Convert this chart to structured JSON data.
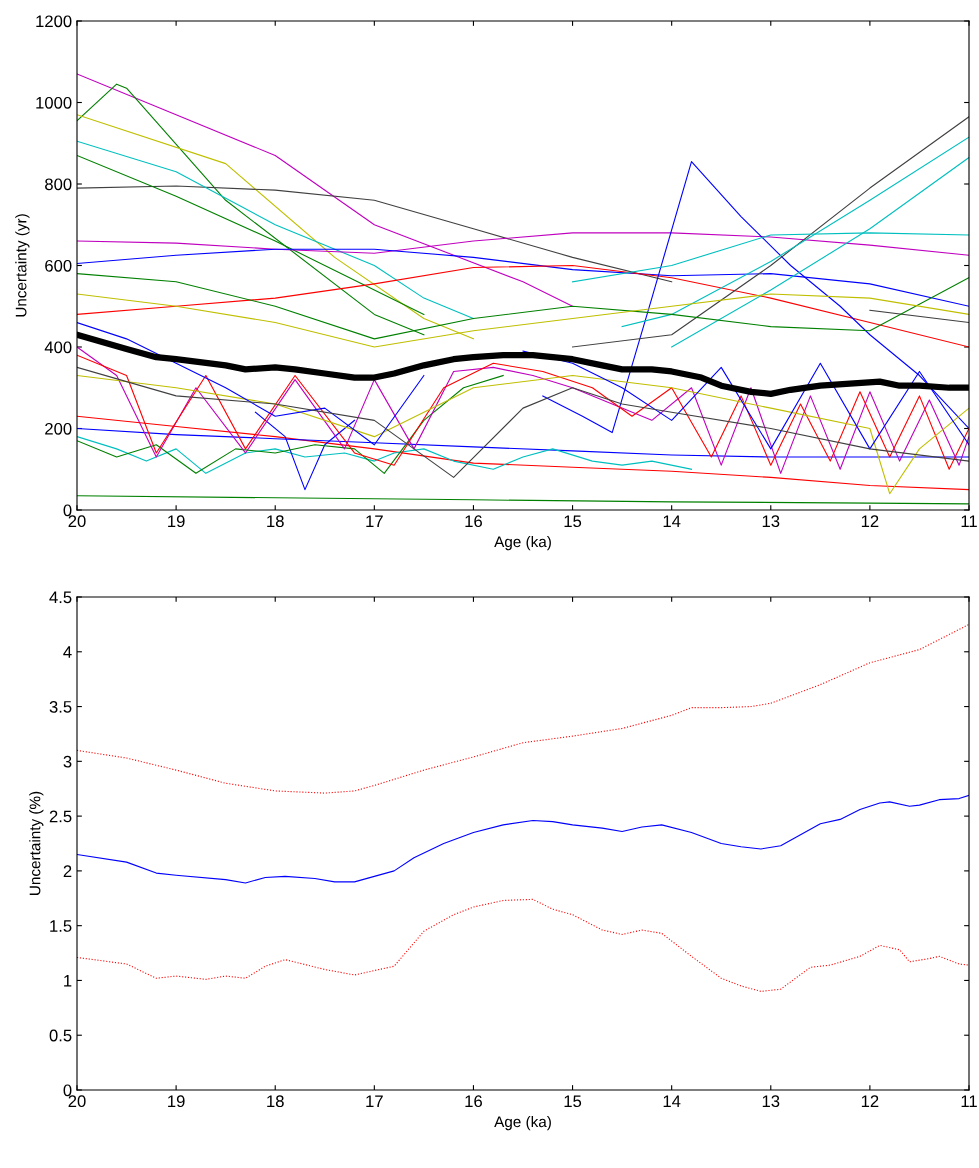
{
  "chart_data": [
    {
      "type": "line",
      "xlabel": "Age (ka)",
      "ylabel": "Uncertainty (yr)",
      "xlim": [
        20,
        11
      ],
      "ylim": [
        0,
        1200
      ],
      "xticks": [
        20,
        19,
        18,
        17,
        16,
        15,
        14,
        13,
        12,
        11
      ],
      "yticks": [
        0,
        200,
        400,
        600,
        800,
        1000,
        1200
      ],
      "grid": false,
      "legend": false,
      "line_style": "solid",
      "series": [
        {
          "color": "#bf00bf",
          "x": [
            20,
            18,
            17,
            15.5,
            15
          ],
          "values": [
            1070,
            870,
            700,
            560,
            500
          ]
        },
        {
          "color": "#008000",
          "x": [
            20,
            19.6,
            19.5,
            18.5,
            17,
            16.5
          ],
          "values": [
            955,
            1045,
            1035,
            760,
            480,
            430
          ]
        },
        {
          "color": "#bfbf00",
          "x": [
            20,
            18.5,
            17.4,
            16.5,
            16
          ],
          "values": [
            970,
            850,
            620,
            470,
            420
          ]
        },
        {
          "color": "#404040",
          "x": [
            20,
            19,
            18,
            17,
            16,
            15,
            14,
            13,
            12,
            11
          ],
          "values": [
            790,
            795,
            785,
            760,
            690,
            620,
            560,
            null,
            490,
            460
          ]
        },
        {
          "color": "#00bfbf",
          "x": [
            20,
            19,
            18,
            17,
            16.5,
            16
          ],
          "values": [
            905,
            830,
            700,
            600,
            520,
            470
          ]
        },
        {
          "color": "#008000",
          "x": [
            20,
            19,
            18,
            17,
            16.5
          ],
          "values": [
            870,
            770,
            660,
            540,
            480
          ]
        },
        {
          "color": "#bf00bf",
          "x": [
            20,
            19,
            18,
            17,
            16,
            15,
            14,
            13,
            12,
            11
          ],
          "values": [
            660,
            655,
            640,
            630,
            660,
            680,
            680,
            670,
            650,
            625
          ]
        },
        {
          "color": "#0000ff",
          "x": [
            20,
            19,
            18,
            17,
            16,
            15,
            14,
            13,
            12,
            11
          ],
          "values": [
            605,
            625,
            640,
            640,
            620,
            590,
            575,
            580,
            555,
            500
          ]
        },
        {
          "color": "#ff0000",
          "x": [
            20,
            19,
            18,
            17,
            16,
            15,
            14,
            13,
            12,
            11
          ],
          "values": [
            480,
            500,
            520,
            555,
            595,
            600,
            570,
            520,
            460,
            400
          ]
        },
        {
          "color": "#0000ff",
          "x": [
            15.3,
            14.9,
            14.6,
            14.2,
            13.8,
            13.3,
            12.8,
            12.3,
            12,
            11.5,
            11
          ],
          "values": [
            280,
            230,
            190,
            520,
            855,
            720,
            600,
            500,
            430,
            330,
            200
          ]
        },
        {
          "color": "#404040",
          "x": [
            15,
            14,
            13,
            12,
            11
          ],
          "values": [
            400,
            430,
            600,
            790,
            965
          ]
        },
        {
          "color": "#00bfbf",
          "x": [
            14.5,
            14,
            13,
            12,
            11
          ],
          "values": [
            450,
            480,
            610,
            760,
            915
          ]
        },
        {
          "color": "#00bfbf",
          "x": [
            14,
            13,
            12,
            11
          ],
          "values": [
            400,
            540,
            690,
            865
          ]
        },
        {
          "color": "#00bfbf",
          "x": [
            15,
            14,
            13,
            12,
            11
          ],
          "values": [
            560,
            600,
            675,
            680,
            675
          ]
        },
        {
          "color": "#ff0000",
          "x": [
            20,
            19,
            18,
            17,
            16,
            15,
            14,
            13,
            12,
            11
          ],
          "values": [
            230,
            205,
            180,
            150,
            115,
            105,
            95,
            80,
            60,
            50
          ]
        },
        {
          "color": "#008000",
          "x": [
            20,
            18,
            16,
            14,
            12,
            11
          ],
          "values": [
            35,
            30,
            25,
            20,
            17,
            15
          ]
        },
        {
          "color": "#0000ff",
          "x": [
            20,
            19,
            18,
            17,
            16,
            15,
            14,
            13,
            12,
            11
          ],
          "values": [
            200,
            185,
            175,
            165,
            155,
            145,
            135,
            130,
            130,
            130
          ]
        },
        {
          "color": "#00bfbf",
          "x": [
            20,
            19.6,
            19.3,
            19,
            18.7,
            18.3,
            18,
            17.7,
            17.3,
            17,
            16.8,
            16.5,
            16.2,
            15.8,
            15.5,
            15.2,
            14.8,
            14.5,
            14.2,
            13.8
          ],
          "values": [
            180,
            150,
            120,
            150,
            90,
            140,
            150,
            130,
            140,
            120,
            140,
            150,
            120,
            100,
            130,
            150,
            120,
            110,
            120,
            100
          ]
        },
        {
          "color": "#0000ff",
          "x": [
            18.2,
            17.9,
            17.7,
            17.5,
            17.2
          ],
          "values": [
            240,
            180,
            50,
            160,
            220
          ]
        },
        {
          "color": "#008000",
          "x": [
            20,
            19.6,
            19.2,
            18.8,
            18.4,
            18,
            17.6,
            17.2,
            16.9,
            16.5,
            16.1,
            15.7
          ],
          "values": [
            170,
            130,
            160,
            90,
            150,
            140,
            160,
            150,
            90,
            220,
            300,
            330
          ]
        },
        {
          "color": "#bf00bf",
          "x": [
            20,
            19.6,
            19.2,
            18.8,
            18.3,
            17.8,
            17.3,
            17,
            16.6,
            16.2,
            15.8,
            15.4,
            15,
            14.6,
            14.2,
            13.8,
            13.5,
            13.2,
            12.9,
            12.6,
            12.3,
            12,
            11.7,
            11.4,
            11.1,
            11
          ],
          "values": [
            400,
            330,
            130,
            300,
            140,
            320,
            150,
            320,
            150,
            340,
            350,
            330,
            300,
            260,
            220,
            300,
            110,
            300,
            90,
            280,
            100,
            290,
            120,
            270,
            110,
            180
          ]
        },
        {
          "color": "#ff0000",
          "x": [
            20,
            19.5,
            19.2,
            18.7,
            18.3,
            17.8,
            17.2,
            16.8,
            16.3,
            15.8,
            15.3,
            14.8,
            14.4,
            14,
            13.6,
            13.3,
            13,
            12.7,
            12.4,
            12.1,
            11.8,
            11.5,
            11.2,
            11
          ],
          "values": [
            380,
            330,
            140,
            330,
            150,
            330,
            140,
            110,
            300,
            360,
            340,
            300,
            230,
            300,
            130,
            280,
            110,
            260,
            120,
            290,
            130,
            280,
            100,
            200
          ]
        },
        {
          "color": "#bfbf00",
          "x": [
            20,
            19,
            18,
            17,
            16,
            15,
            14,
            13,
            12,
            11.8,
            11.5,
            11
          ],
          "values": [
            330,
            300,
            260,
            180,
            300,
            330,
            300,
            250,
            200,
            40,
            150,
            250
          ]
        },
        {
          "color": "#0000ff",
          "x": [
            20,
            19.5,
            19,
            18.5,
            18,
            17.5,
            17,
            16.5,
            16,
            15.5,
            15,
            14.5,
            14,
            13.5,
            13,
            12.5,
            12,
            11.5,
            11
          ],
          "values": [
            460,
            420,
            360,
            300,
            230,
            250,
            160,
            330,
            null,
            390,
            360,
            300,
            220,
            350,
            150,
            360,
            150,
            340,
            160
          ]
        },
        {
          "color": "#404040",
          "x": [
            20,
            19,
            18,
            17,
            16.2,
            15.5,
            15,
            14.5,
            14,
            13,
            12,
            11
          ],
          "values": [
            350,
            280,
            260,
            220,
            80,
            250,
            300,
            260,
            240,
            200,
            150,
            120
          ]
        },
        {
          "color": "#008000",
          "x": [
            20,
            19,
            18,
            17,
            16,
            15,
            14,
            13,
            12,
            11
          ],
          "values": [
            580,
            560,
            500,
            420,
            470,
            500,
            480,
            450,
            440,
            570
          ]
        },
        {
          "color": "#bfbf00",
          "x": [
            20,
            19,
            18,
            17,
            16,
            15,
            14,
            13,
            12,
            11
          ],
          "values": [
            530,
            500,
            460,
            400,
            440,
            470,
            500,
            530,
            520,
            480
          ]
        },
        {
          "color": "#000000",
          "x": [
            20,
            19.5,
            19.2,
            19,
            18.5,
            18.3,
            18,
            17.8,
            17.5,
            17.2,
            17,
            16.8,
            16.5,
            16.2,
            16,
            15.7,
            15.4,
            15,
            14.7,
            14.5,
            14.2,
            14,
            13.7,
            13.5,
            13.2,
            13,
            12.8,
            12.5,
            12.2,
            11.9,
            11.7,
            11.5,
            11.2,
            11
          ],
          "values": [
            430,
            395,
            375,
            370,
            355,
            345,
            350,
            345,
            335,
            325,
            325,
            335,
            355,
            370,
            375,
            380,
            380,
            370,
            355,
            345,
            345,
            340,
            325,
            305,
            290,
            285,
            295,
            305,
            310,
            315,
            305,
            305,
            300,
            300
          ]
        }
      ]
    },
    {
      "type": "line",
      "xlabel": "Age (ka)",
      "ylabel": "Uncertainty (%)",
      "xlim": [
        20,
        11
      ],
      "ylim": [
        0,
        4.5
      ],
      "xticks": [
        20,
        19,
        18,
        17,
        16,
        15,
        14,
        13,
        12,
        11
      ],
      "yticks": [
        0,
        0.5,
        1,
        1.5,
        2,
        2.5,
        3,
        3.5,
        4,
        4.5
      ],
      "grid": false,
      "legend": false,
      "series": [
        {
          "color": "#ff0000",
          "line_style": "dotted",
          "x": [
            20,
            19.5,
            19,
            18.5,
            18,
            17.5,
            17.2,
            17,
            16.5,
            16,
            15.5,
            15,
            14.5,
            14,
            13.8,
            13.5,
            13.2,
            13,
            12.5,
            12,
            11.5,
            11
          ],
          "values": [
            3.1,
            3.03,
            2.92,
            2.8,
            2.73,
            2.71,
            2.73,
            2.78,
            2.92,
            3.04,
            3.17,
            3.23,
            3.3,
            3.42,
            3.49,
            3.49,
            3.5,
            3.53,
            3.7,
            3.9,
            4.02,
            4.25
          ]
        },
        {
          "color": "#0000ff",
          "line_style": "solid",
          "x": [
            20,
            19.5,
            19.2,
            19,
            18.5,
            18.3,
            18.1,
            17.9,
            17.6,
            17.4,
            17.2,
            17,
            16.8,
            16.6,
            16.3,
            16,
            15.7,
            15.4,
            15.2,
            15,
            14.7,
            14.5,
            14.3,
            14.1,
            13.8,
            13.5,
            13.3,
            13.1,
            12.9,
            12.7,
            12.5,
            12.3,
            12.1,
            11.9,
            11.8,
            11.6,
            11.5,
            11.3,
            11.1,
            11
          ],
          "values": [
            2.15,
            2.08,
            1.98,
            1.96,
            1.92,
            1.89,
            1.94,
            1.95,
            1.93,
            1.9,
            1.9,
            1.95,
            2.0,
            2.12,
            2.25,
            2.35,
            2.42,
            2.46,
            2.45,
            2.42,
            2.39,
            2.36,
            2.4,
            2.42,
            2.35,
            2.25,
            2.22,
            2.2,
            2.23,
            2.33,
            2.43,
            2.47,
            2.56,
            2.62,
            2.63,
            2.59,
            2.6,
            2.65,
            2.66,
            2.69
          ]
        },
        {
          "color": "#ff0000",
          "line_style": "dotted",
          "x": [
            20,
            19.5,
            19.2,
            19,
            18.7,
            18.5,
            18.3,
            18.1,
            17.9,
            17.5,
            17.2,
            17,
            16.8,
            16.5,
            16.2,
            16,
            15.7,
            15.4,
            15.2,
            15,
            14.7,
            14.5,
            14.3,
            14.1,
            13.8,
            13.5,
            13.3,
            13.1,
            12.9,
            12.6,
            12.4,
            12.1,
            11.9,
            11.7,
            11.6,
            11.4,
            11.3,
            11.1,
            11
          ],
          "values": [
            1.21,
            1.15,
            1.02,
            1.04,
            1.01,
            1.04,
            1.02,
            1.13,
            1.19,
            1.1,
            1.05,
            1.09,
            1.13,
            1.45,
            1.6,
            1.67,
            1.73,
            1.74,
            1.65,
            1.6,
            1.46,
            1.42,
            1.46,
            1.43,
            1.22,
            1.02,
            0.95,
            0.9,
            0.92,
            1.12,
            1.14,
            1.22,
            1.32,
            1.28,
            1.17,
            1.2,
            1.22,
            1.15,
            1.14
          ]
        }
      ]
    }
  ]
}
